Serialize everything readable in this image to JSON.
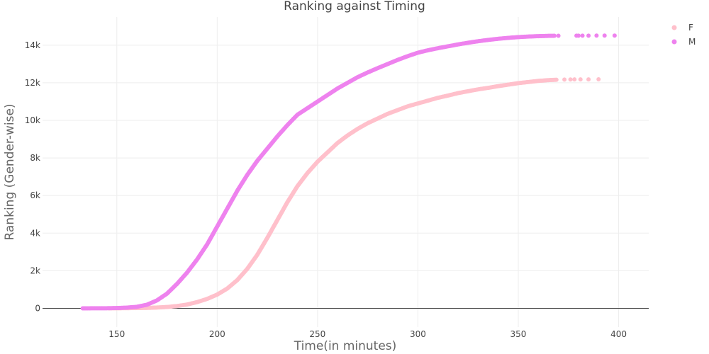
{
  "chart_data": {
    "type": "scatter",
    "title": "Ranking against Timing",
    "xlabel": "Time(in minutes)",
    "ylabel": "Ranking (Gender-wise)",
    "xlim": [
      113,
      415
    ],
    "ylim": [
      -1000,
      15500
    ],
    "x_ticks": [
      150,
      200,
      250,
      300,
      350,
      400
    ],
    "x_tick_labels": [
      "150",
      "200",
      "250",
      "300",
      "350",
      "400"
    ],
    "y_ticks": [
      0,
      2000,
      4000,
      6000,
      8000,
      10000,
      12000,
      14000
    ],
    "y_tick_labels": [
      "0",
      "2k",
      "4k",
      "6k",
      "8k",
      "10k",
      "12k",
      "14k"
    ],
    "grid": true,
    "legend_position": "top-right",
    "series": [
      {
        "name": "F",
        "color": "#ffc0cb",
        "points": [
          [
            146,
            0
          ],
          [
            150,
            3
          ],
          [
            155,
            8
          ],
          [
            160,
            15
          ],
          [
            163,
            20
          ],
          [
            166,
            25
          ],
          [
            170,
            40
          ],
          [
            175,
            70
          ],
          [
            180,
            120
          ],
          [
            185,
            200
          ],
          [
            190,
            330
          ],
          [
            195,
            500
          ],
          [
            200,
            730
          ],
          [
            205,
            1050
          ],
          [
            210,
            1500
          ],
          [
            215,
            2100
          ],
          [
            220,
            2850
          ],
          [
            225,
            3750
          ],
          [
            230,
            4700
          ],
          [
            235,
            5650
          ],
          [
            240,
            6500
          ],
          [
            245,
            7200
          ],
          [
            250,
            7800
          ],
          [
            255,
            8300
          ],
          [
            260,
            8800
          ],
          [
            265,
            9200
          ],
          [
            270,
            9550
          ],
          [
            275,
            9850
          ],
          [
            280,
            10100
          ],
          [
            285,
            10350
          ],
          [
            290,
            10550
          ],
          [
            295,
            10750
          ],
          [
            300,
            10900
          ],
          [
            305,
            11050
          ],
          [
            310,
            11200
          ],
          [
            315,
            11320
          ],
          [
            320,
            11450
          ],
          [
            325,
            11550
          ],
          [
            330,
            11650
          ],
          [
            335,
            11730
          ],
          [
            340,
            11820
          ],
          [
            345,
            11900
          ],
          [
            350,
            11980
          ],
          [
            355,
            12040
          ],
          [
            360,
            12100
          ],
          [
            365,
            12140
          ],
          [
            369,
            12160
          ]
        ],
        "outliers": [
          [
            373,
            12170
          ],
          [
            376,
            12175
          ],
          [
            378,
            12178
          ],
          [
            381,
            12180
          ],
          [
            385,
            12182
          ],
          [
            390,
            12185
          ]
        ]
      },
      {
        "name": "M",
        "color": "#ee82ee",
        "points": [
          [
            133,
            0
          ],
          [
            135,
            0
          ],
          [
            140,
            2
          ],
          [
            145,
            5
          ],
          [
            150,
            15
          ],
          [
            155,
            35
          ],
          [
            160,
            80
          ],
          [
            165,
            190
          ],
          [
            170,
            420
          ],
          [
            175,
            780
          ],
          [
            180,
            1300
          ],
          [
            185,
            1900
          ],
          [
            190,
            2600
          ],
          [
            195,
            3400
          ],
          [
            200,
            4350
          ],
          [
            205,
            5300
          ],
          [
            210,
            6250
          ],
          [
            215,
            7100
          ],
          [
            220,
            7850
          ],
          [
            225,
            8500
          ],
          [
            230,
            9150
          ],
          [
            235,
            9750
          ],
          [
            240,
            10300
          ],
          [
            245,
            10650
          ],
          [
            250,
            11000
          ],
          [
            255,
            11350
          ],
          [
            260,
            11700
          ],
          [
            265,
            12000
          ],
          [
            270,
            12300
          ],
          [
            275,
            12550
          ],
          [
            280,
            12780
          ],
          [
            285,
            13000
          ],
          [
            290,
            13220
          ],
          [
            295,
            13420
          ],
          [
            300,
            13600
          ],
          [
            305,
            13730
          ],
          [
            310,
            13840
          ],
          [
            315,
            13940
          ],
          [
            320,
            14040
          ],
          [
            325,
            14130
          ],
          [
            330,
            14210
          ],
          [
            335,
            14280
          ],
          [
            340,
            14340
          ],
          [
            345,
            14390
          ],
          [
            350,
            14430
          ],
          [
            355,
            14460
          ],
          [
            360,
            14480
          ],
          [
            365,
            14495
          ],
          [
            368,
            14500
          ]
        ],
        "outliers": [
          [
            370,
            14502
          ],
          [
            379,
            14505
          ],
          [
            380,
            14506
          ],
          [
            382,
            14507
          ],
          [
            385,
            14508
          ],
          [
            389,
            14509
          ],
          [
            393,
            14510
          ],
          [
            398,
            14512
          ]
        ]
      }
    ]
  }
}
